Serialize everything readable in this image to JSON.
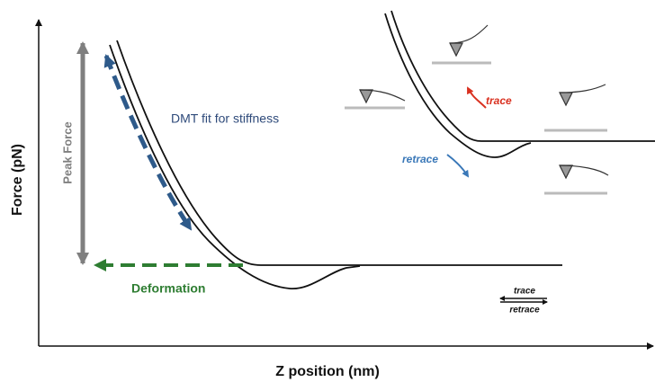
{
  "y_axis_label": "Force (pN)",
  "x_axis_label": "Z position (nm)",
  "annotations": {
    "peak_force": "Peak Force",
    "dmt_fit": "DMT fit for stiffness",
    "deformation": "Deformation",
    "inset_trace": "trace",
    "inset_retrace": "retrace"
  },
  "legend": {
    "trace": "trace",
    "retrace": "retrace"
  }
}
